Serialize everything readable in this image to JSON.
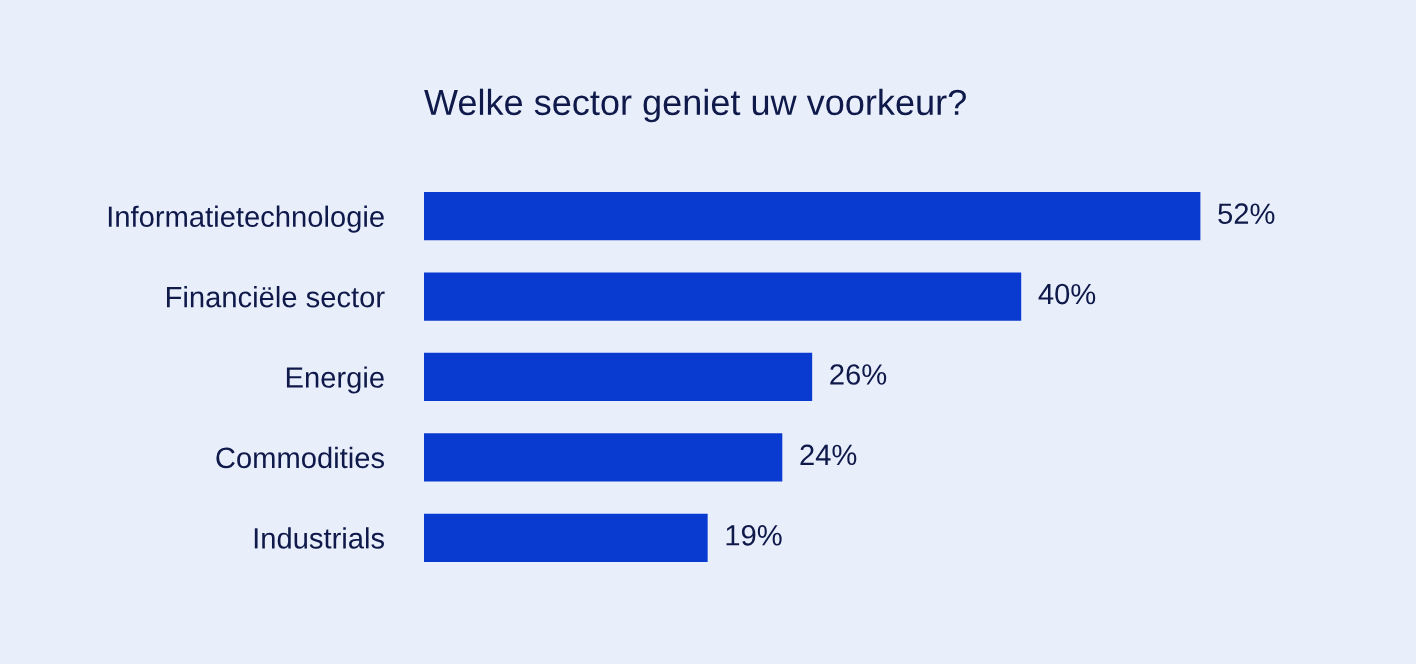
{
  "chart_data": {
    "type": "bar",
    "orientation": "horizontal",
    "title": "Welke sector geniet uw voorkeur?",
    "categories": [
      "Informatietechnologie",
      "Financiële sector",
      "Energie",
      "Commodities",
      "Industrials"
    ],
    "values": [
      52,
      40,
      26,
      24,
      19
    ],
    "value_labels": [
      "52%",
      "40%",
      "26%",
      "24%",
      "19%"
    ],
    "color": "#0a3bd1",
    "data_labels": false
  }
}
